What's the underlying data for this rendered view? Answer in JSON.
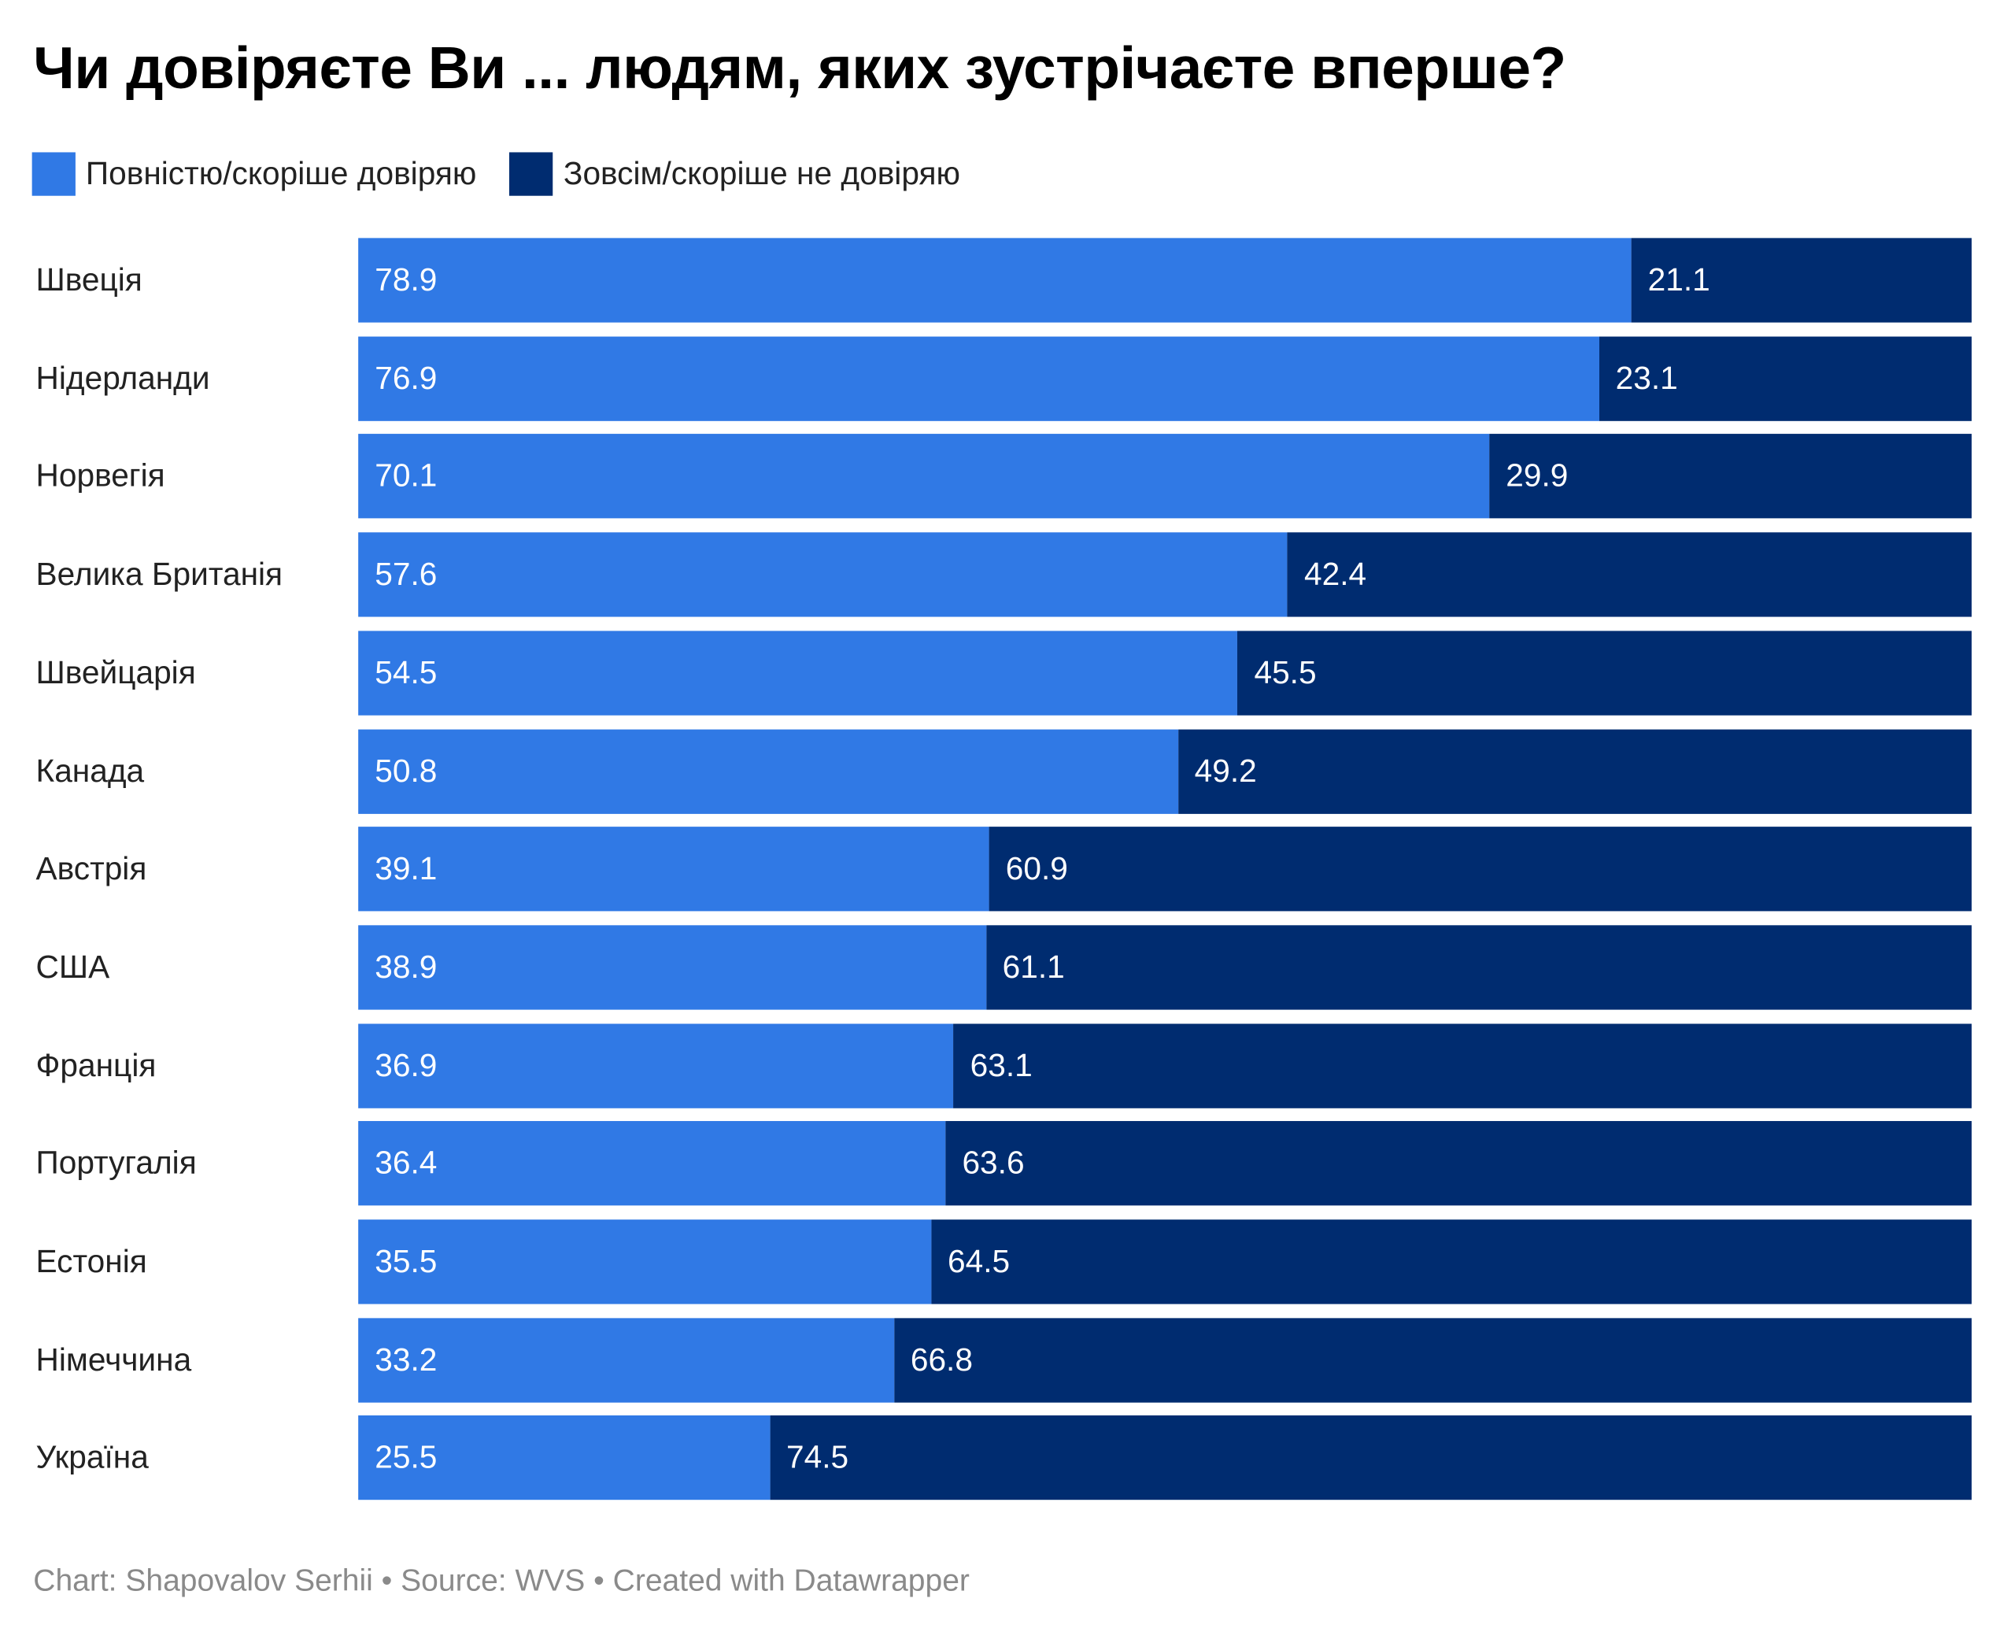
{
  "title": "Чи довіряєте Ви ... людям, яких зустрічаєте вперше?",
  "footer": "Chart: Shapovalov Serhii • Source: WVS • Created with Datawrapper",
  "chart_data": {
    "type": "bar",
    "stacked": true,
    "orientation": "horizontal",
    "title": "Чи довіряєте Ви ... людям, яких зустрічаєте вперше?",
    "legend_position": "top-left",
    "categories": [
      "Швеція",
      "Нідерланди",
      "Норвегія",
      "Велика Британія",
      "Швейцарія",
      "Канада",
      "Австрія",
      "США",
      "Франція",
      "Португалія",
      "Естонія",
      "Німеччина",
      "Україна"
    ],
    "series": [
      {
        "name": "Повністю/скоріше довіряю",
        "color": "#3079e5",
        "values": [
          78.9,
          76.9,
          70.1,
          57.6,
          54.5,
          50.8,
          39.1,
          38.9,
          36.9,
          36.4,
          35.5,
          33.2,
          25.5
        ]
      },
      {
        "name": "Зовсім/скоріше не довіряю",
        "color": "#002c70",
        "values": [
          21.1,
          23.1,
          29.9,
          42.4,
          45.5,
          49.2,
          60.9,
          61.1,
          63.1,
          63.6,
          64.5,
          66.8,
          74.5
        ]
      }
    ],
    "xlim": [
      0,
      100
    ]
  }
}
